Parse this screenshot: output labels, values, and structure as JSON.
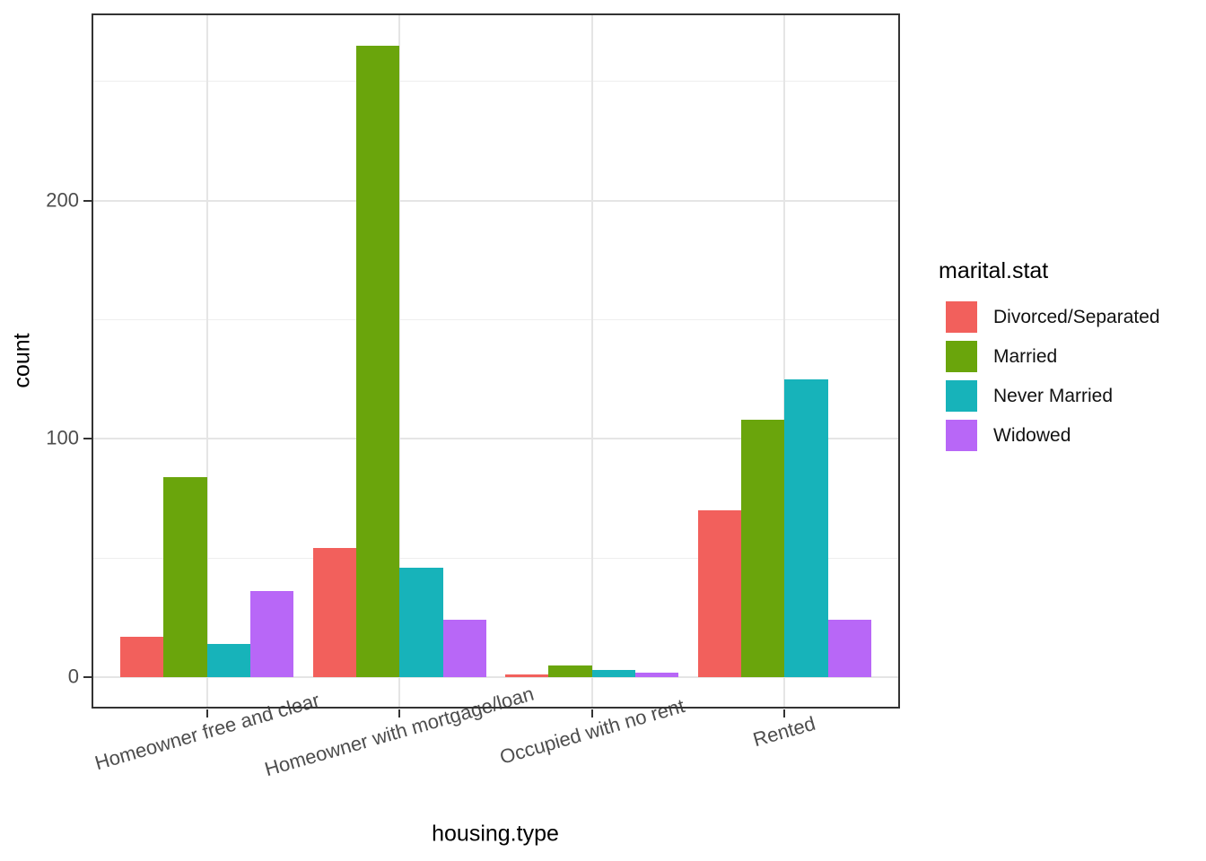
{
  "chart_data": {
    "type": "bar",
    "bar_grouping": "dodge",
    "title": "",
    "xlabel": "housing.type",
    "ylabel": "count",
    "legend_title": "marital.stat",
    "legend_position": "right",
    "grid": true,
    "categories": [
      "Homeowner free and clear",
      "Homeowner with mortgage/loan",
      "Occupied with no rent",
      "Rented"
    ],
    "series": [
      {
        "name": "Divorced/Separated",
        "color": "#F2605C",
        "values": [
          17,
          54,
          1,
          70
        ]
      },
      {
        "name": "Married",
        "color": "#6AA50C",
        "values": [
          84,
          265,
          5,
          108
        ]
      },
      {
        "name": "Never Married",
        "color": "#17B3BA",
        "values": [
          14,
          46,
          3,
          125
        ]
      },
      {
        "name": "Widowed",
        "color": "#B867F7",
        "values": [
          36,
          24,
          2,
          24
        ]
      }
    ],
    "y_ticks": [
      0,
      100,
      200
    ],
    "y_minor_ticks": [
      50,
      150,
      250
    ],
    "ylim": [
      -13.2,
      278.5
    ],
    "x_tick_angle_deg": 16,
    "panel_border_color": "#333333",
    "grid_major_color": "#E5E5E5",
    "grid_minor_color": "#EEEEEE",
    "axis_text_color": "#4d4d4d",
    "title_text_color": "#000000",
    "background_color": "#FFFFFF"
  }
}
